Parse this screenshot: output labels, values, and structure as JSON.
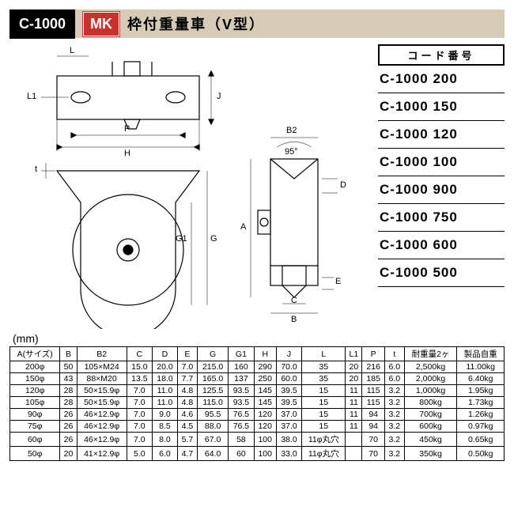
{
  "header": {
    "code": "C-1000",
    "logo": "MK",
    "title": "枠付重量車（V型）"
  },
  "codeList": {
    "heading": "コード番号",
    "items": [
      "C-1000 200",
      "C-1000 150",
      "C-1000 120",
      "C-1000 100",
      "C-1000 900",
      "C-1000 750",
      "C-1000 600",
      "C-1000 500"
    ]
  },
  "unit": "(mm)",
  "diagram": {
    "labels": [
      "L",
      "L1",
      "P",
      "H",
      "t",
      "G1",
      "G",
      "A",
      "B2",
      "95°",
      "D",
      "E",
      "C",
      "B",
      "J"
    ]
  },
  "table": {
    "columns": [
      "A(サイズ)",
      "B",
      "B2",
      "C",
      "D",
      "E",
      "G",
      "G1",
      "H",
      "J",
      "L",
      "L1",
      "P",
      "t",
      "耐重量2ヶ",
      "製品自重"
    ],
    "rows": [
      [
        "200φ",
        "50",
        "105×M24",
        "15.0",
        "20.0",
        "7.0",
        "215.0",
        "160",
        "290",
        "70.0",
        "35",
        "20",
        "216",
        "6.0",
        "2,500kg",
        "11.00kg"
      ],
      [
        "150φ",
        "43",
        "88×M20",
        "13.5",
        "18.0",
        "7.7",
        "165.0",
        "137",
        "250",
        "60.0",
        "35",
        "20",
        "185",
        "6.0",
        "2,000kg",
        "6.40kg"
      ],
      [
        "120φ",
        "28",
        "50×15.9φ",
        "7.0",
        "11.0",
        "4.8",
        "125.5",
        "93.5",
        "145",
        "39.5",
        "15",
        "11",
        "115",
        "3.2",
        "1,000kg",
        "1.95kg"
      ],
      [
        "105φ",
        "28",
        "50×15.9φ",
        "7.0",
        "11.0",
        "4.8",
        "115.0",
        "93.5",
        "145",
        "39.5",
        "15",
        "11",
        "115",
        "3.2",
        "800kg",
        "1.73kg"
      ],
      [
        "90φ",
        "26",
        "46×12.9φ",
        "7.0",
        "9.0",
        "4.6",
        "95.5",
        "76.5",
        "120",
        "37.0",
        "15",
        "11",
        "94",
        "3.2",
        "700kg",
        "1.26kg"
      ],
      [
        "75φ",
        "26",
        "46×12.9φ",
        "7.0",
        "8.5",
        "4.5",
        "88.0",
        "76.5",
        "120",
        "37.0",
        "15",
        "11",
        "94",
        "3.2",
        "600kg",
        "0.97kg"
      ],
      [
        "60φ",
        "26",
        "46×12.9φ",
        "7.0",
        "8.0",
        "5.7",
        "67.0",
        "58",
        "100",
        "38.0",
        "11φ丸穴",
        "",
        "70",
        "3.2",
        "450kg",
        "0.65kg"
      ],
      [
        "50φ",
        "20",
        "41×12.9φ",
        "5.0",
        "6.0",
        "4.7",
        "64.0",
        "60",
        "100",
        "33.0",
        "11φ丸穴",
        "",
        "70",
        "3.2",
        "350kg",
        "0.50kg"
      ]
    ]
  }
}
